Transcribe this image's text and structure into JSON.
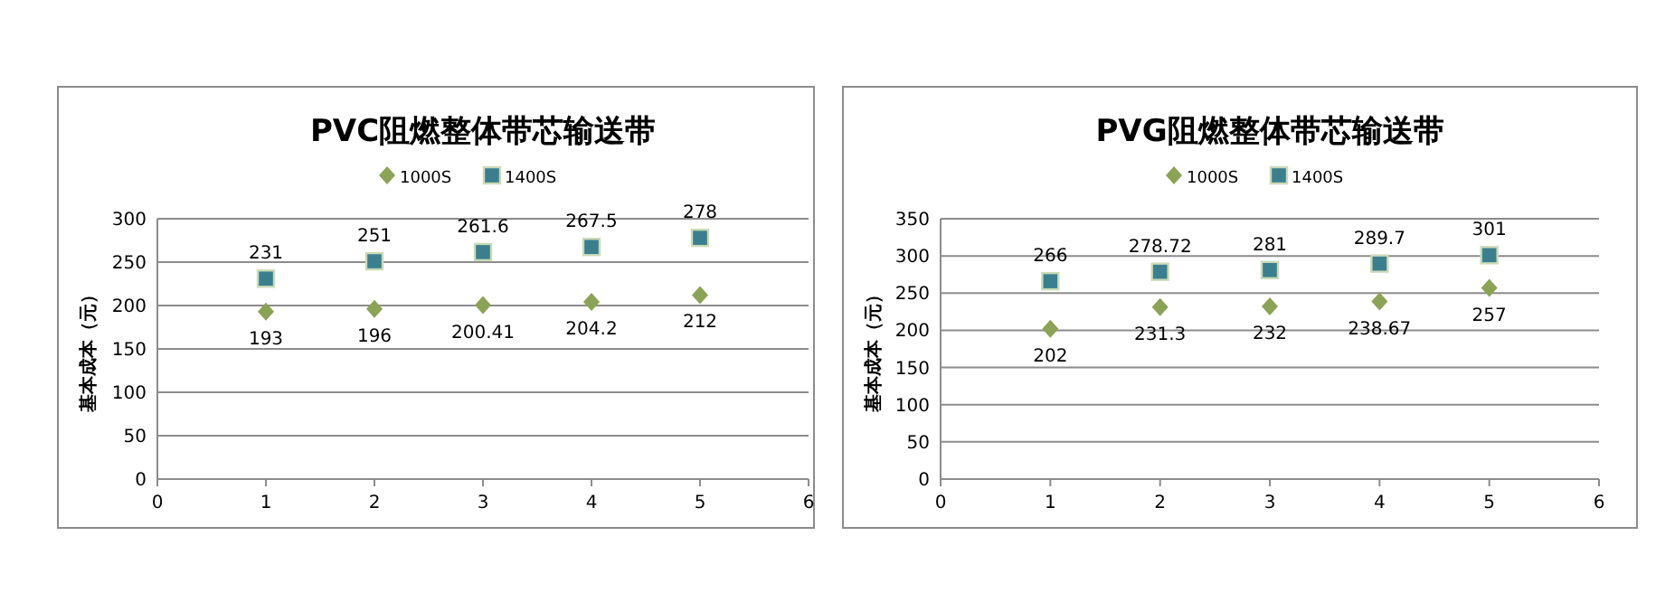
{
  "chart_data": [
    {
      "type": "scatter",
      "title": "PVC阻燃整体带芯输送带",
      "ylabel": "基本成本（元）",
      "x": [
        1,
        2,
        3,
        4,
        5
      ],
      "xlim": [
        0,
        6
      ],
      "xticks": [
        0,
        1,
        2,
        3,
        4,
        5,
        6
      ],
      "ylim": [
        0,
        300
      ],
      "yticks": [
        0,
        50,
        100,
        150,
        200,
        250,
        300
      ],
      "grid": "y",
      "legend": "top",
      "data_labels": true,
      "series": [
        {
          "name": "1000S",
          "color": "#8ba356",
          "marker": "diamond",
          "values": [
            193,
            196,
            200.41,
            204.2,
            212
          ]
        },
        {
          "name": "1400S",
          "color": "#3b7f8f",
          "marker": "square",
          "values": [
            231,
            251,
            261.6,
            267.5,
            278
          ]
        }
      ]
    },
    {
      "type": "scatter",
      "title": "PVG阻燃整体带芯输送带",
      "ylabel": "基本成本（元）",
      "x": [
        1,
        2,
        3,
        4,
        5
      ],
      "xlim": [
        0,
        6
      ],
      "xticks": [
        0,
        1,
        2,
        3,
        4,
        5,
        6
      ],
      "ylim": [
        0,
        350
      ],
      "yticks": [
        0,
        50,
        100,
        150,
        200,
        250,
        300,
        350
      ],
      "grid": "y",
      "legend": "top",
      "data_labels": true,
      "series": [
        {
          "name": "1000S",
          "color": "#8ba356",
          "marker": "diamond",
          "values": [
            202,
            231.3,
            232,
            238.67,
            257
          ]
        },
        {
          "name": "1400S",
          "color": "#3b7f8f",
          "marker": "square",
          "values": [
            266,
            278.72,
            281,
            289.7,
            301
          ]
        }
      ]
    }
  ]
}
